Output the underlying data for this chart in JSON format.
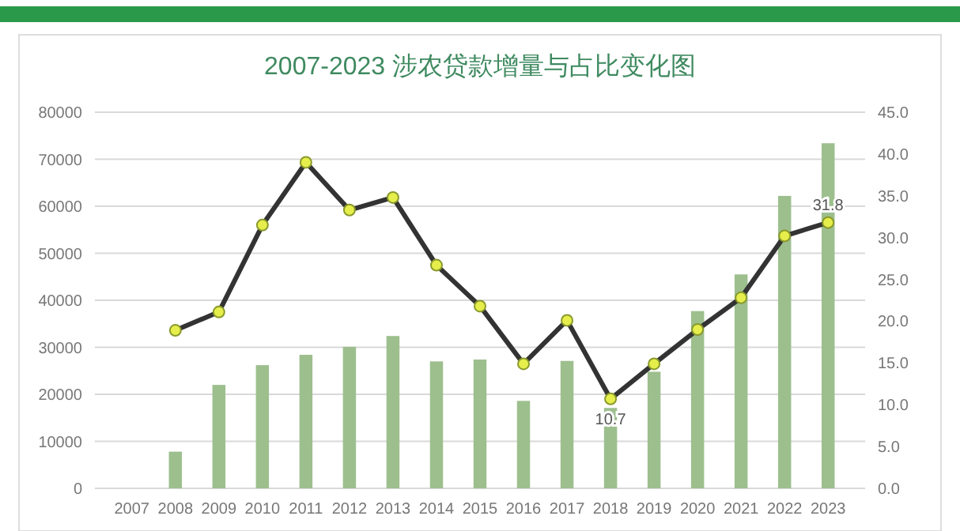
{
  "chart_data": {
    "type": "bar",
    "title": "2007-2023 涉农贷款增量与占比变化图",
    "categories": [
      "2007",
      "2008",
      "2009",
      "2010",
      "2011",
      "2012",
      "2013",
      "2014",
      "2015",
      "2016",
      "2017",
      "2018",
      "2019",
      "2020",
      "2021",
      "2022",
      "2023"
    ],
    "series": [
      {
        "color": "#9dbf8e",
        "values": [
          null,
          7800,
          22000,
          26200,
          28400,
          30100,
          32400,
          27000,
          27400,
          18600,
          27100,
          17100,
          24800,
          37700,
          45500,
          62200,
          73400
        ]
      },
      {
        "type": "line",
        "axis": "y2",
        "color": "#333333",
        "marker": "circle",
        "line_style": "solid",
        "values": [
          null,
          18.9,
          21.1,
          31.5,
          39.0,
          33.3,
          34.8,
          26.7,
          21.8,
          14.9,
          20.1,
          10.7,
          14.9,
          19.0,
          22.8,
          30.2,
          31.8
        ],
        "value_labels": [
          null,
          null,
          null,
          null,
          null,
          null,
          null,
          null,
          null,
          null,
          null,
          "10.7",
          null,
          null,
          null,
          null,
          "31.8"
        ]
      }
    ],
    "ylim": [
      0,
      80000
    ],
    "yticks": [
      0,
      10000,
      20000,
      30000,
      40000,
      50000,
      60000,
      70000,
      80000
    ],
    "y2lim": [
      0,
      45
    ],
    "y2ticks": [
      {
        "value": 0,
        "label": "0.0"
      },
      {
        "value": 5,
        "label": "5.0"
      },
      {
        "value": 10,
        "label": "10.0"
      },
      {
        "value": 15,
        "label": "15.0"
      },
      {
        "value": 20,
        "label": "20.0"
      },
      {
        "value": 25,
        "label": "25.0"
      },
      {
        "value": 30,
        "label": "30.0"
      },
      {
        "value": 35,
        "label": "35.0"
      },
      {
        "value": 40,
        "label": "40.0"
      },
      {
        "value": 45,
        "label": "45.0"
      }
    ],
    "grid": "y"
  }
}
